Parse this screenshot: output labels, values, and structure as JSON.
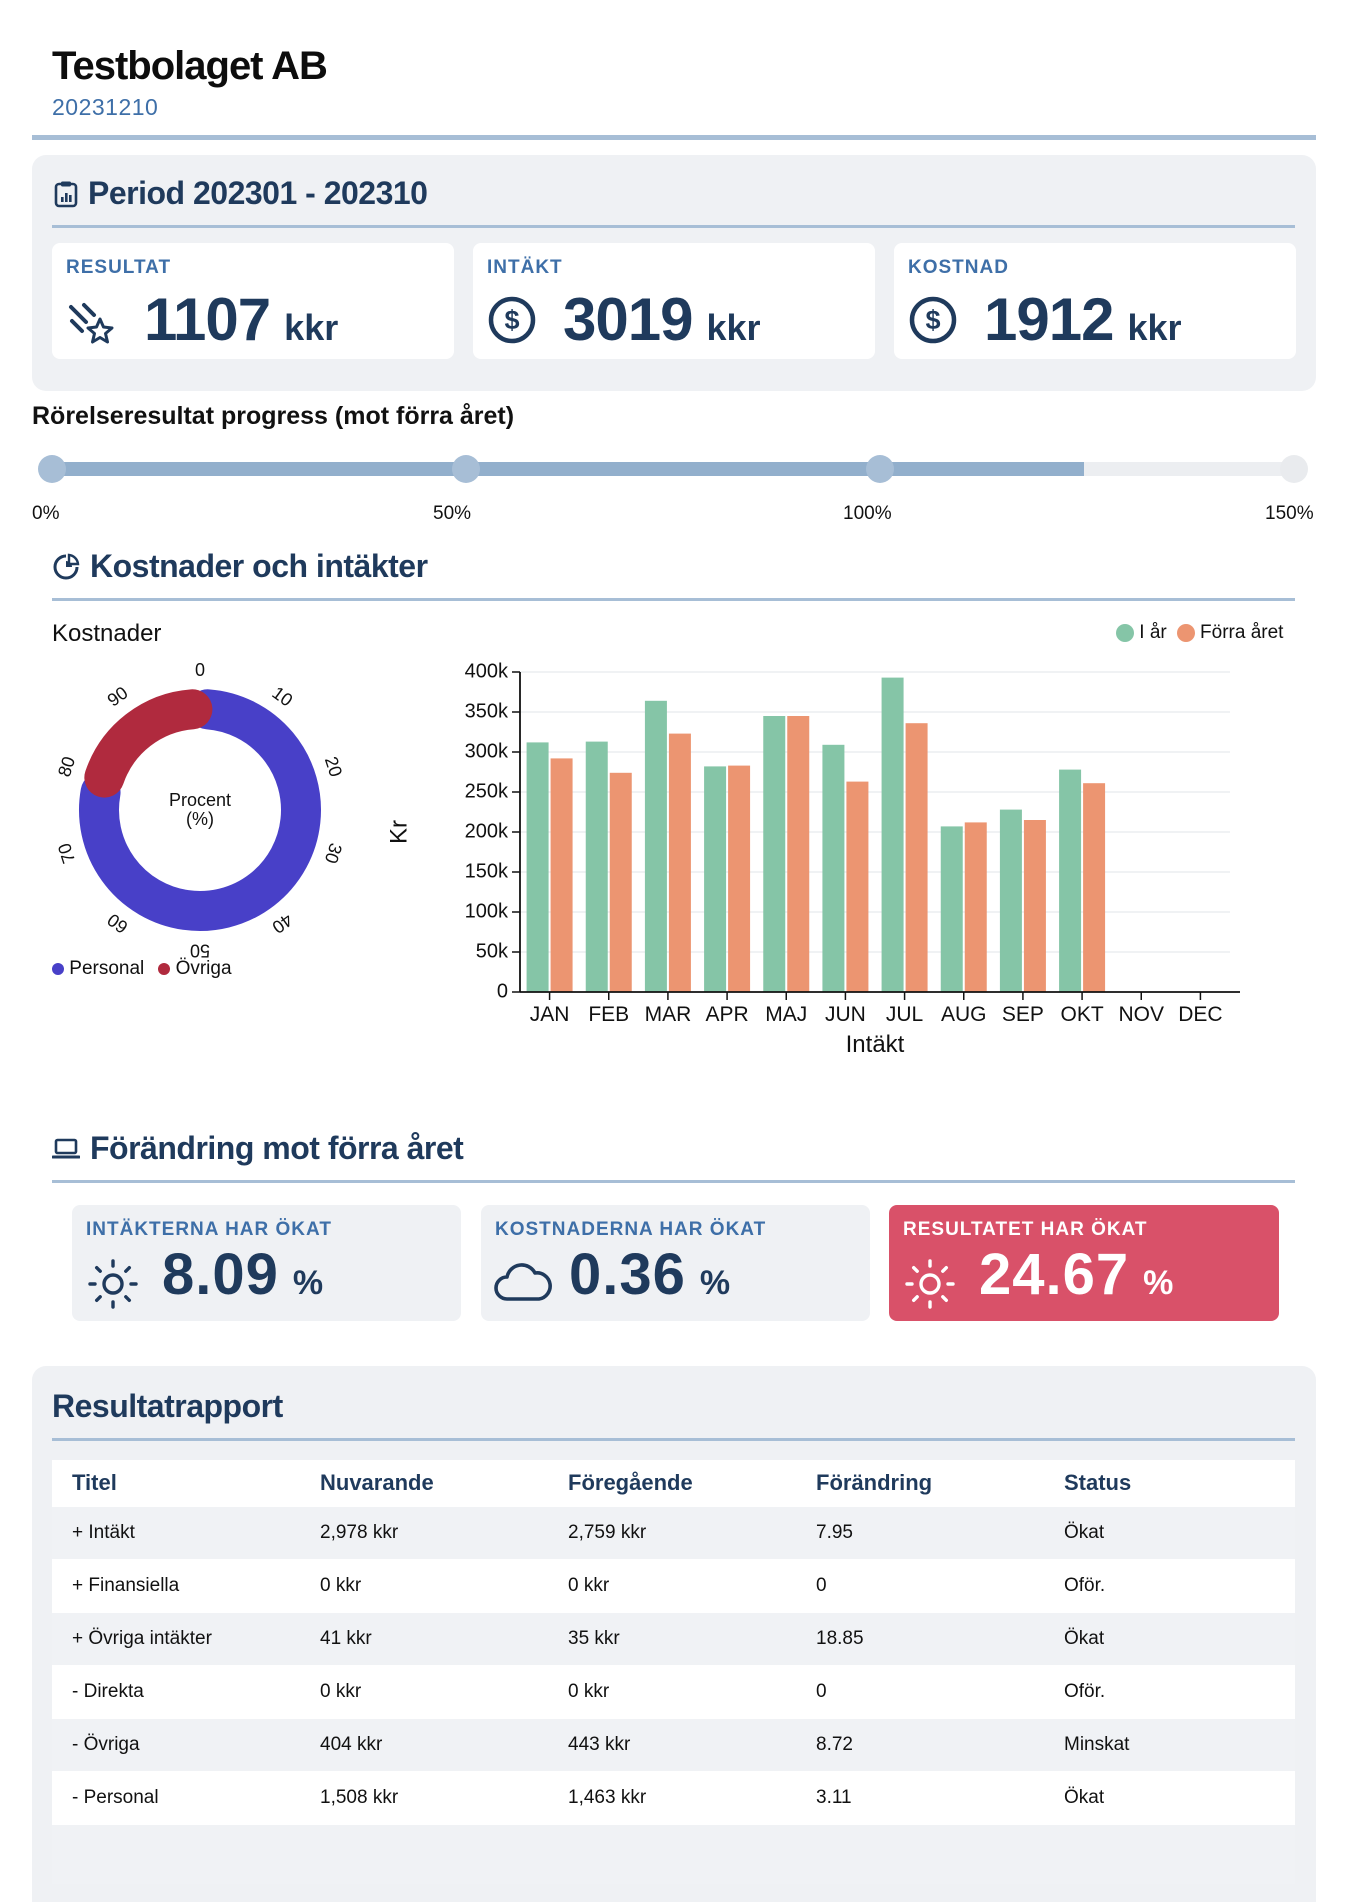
{
  "header": {
    "company": "Testbolaget AB",
    "date": "20231210"
  },
  "period": {
    "title": "Period 202301 - 202310",
    "cards": [
      {
        "label": "RESULTAT",
        "value": "1107",
        "unit": "kkr",
        "icon": "falling-star-icon"
      },
      {
        "label": "INTÄKT",
        "value": "3019",
        "unit": "kkr",
        "icon": "dollar-circle-icon"
      },
      {
        "label": "KOSTNAD",
        "value": "1912",
        "unit": "kkr",
        "icon": "dollar-circle-icon"
      }
    ]
  },
  "progress": {
    "title": "Rörelseresultat progress (mot förra året)",
    "value_percent": 124.67,
    "max_percent": 150,
    "ticks": [
      "0%",
      "50%",
      "100%",
      "150%"
    ],
    "colors": {
      "fill": "#92afcc",
      "track": "#eceef1",
      "dot": "#a7bed6"
    }
  },
  "charts_section": {
    "title": "Kostnader och intäkter"
  },
  "change_section": {
    "title": "Förändring mot förra året",
    "cards": [
      {
        "label": "INTÄKTERNA HAR ÖKAT",
        "value": "8.09",
        "unit": "%",
        "icon": "sun-icon",
        "highlight": false
      },
      {
        "label": "KOSTNADERNA HAR ÖKAT",
        "value": "0.36",
        "unit": "%",
        "icon": "cloud-icon",
        "highlight": false
      },
      {
        "label": "RESULTATET HAR ÖKAT",
        "value": "24.67",
        "unit": "%",
        "icon": "sun-icon",
        "highlight": true
      }
    ]
  },
  "report": {
    "title": "Resultatrapport",
    "columns": [
      "Titel",
      "Nuvarande",
      "Föregående",
      "Förändring",
      "Status"
    ],
    "rows": [
      [
        "+ Intäkt",
        "2,978 kkr",
        "2,759 kkr",
        "7.95",
        "Ökat"
      ],
      [
        "+ Finansiella",
        "0 kkr",
        "0 kkr",
        "0",
        "Oför."
      ],
      [
        "+ Övriga intäkter",
        "41 kkr",
        "35 kkr",
        "18.85",
        "Ökat"
      ],
      [
        "- Direkta",
        "0 kkr",
        "0 kkr",
        "0",
        "Oför."
      ],
      [
        "- Övriga",
        "404 kkr",
        "443 kkr",
        "8.72",
        "Minskat"
      ],
      [
        "- Personal",
        "1,508 kkr",
        "1,463 kkr",
        "3.11",
        "Ökat"
      ]
    ]
  },
  "chart_data": [
    {
      "type": "pie",
      "subtype": "donut",
      "title": "Kostnader",
      "center_label": "Procent\n(%)",
      "angular_ticks": [
        "0",
        "10",
        "20",
        "30",
        "40",
        "50",
        "60",
        "70",
        "80",
        "90"
      ],
      "slices": [
        {
          "name": "Personal",
          "value": 79,
          "color": "#4840c8"
        },
        {
          "name": "Övriga",
          "value": 21,
          "color": "#b02a3e"
        }
      ],
      "legend": "bottom-left"
    },
    {
      "type": "bar",
      "title": "",
      "xlabel": "Intäkt",
      "ylabel": "Kr",
      "ylim": [
        0,
        400000
      ],
      "yticks": [
        0,
        50000,
        100000,
        150000,
        200000,
        250000,
        300000,
        350000,
        400000
      ],
      "ytick_labels": [
        "0",
        "50k",
        "100k",
        "150k",
        "200k",
        "250k",
        "300k",
        "350k",
        "400k"
      ],
      "categories": [
        "JAN",
        "FEB",
        "MAR",
        "APR",
        "MAJ",
        "JUN",
        "JUL",
        "AUG",
        "SEP",
        "OKT",
        "NOV",
        "DEC"
      ],
      "series": [
        {
          "name": "I år",
          "color": "#85c5a7",
          "values": [
            312000,
            313000,
            364000,
            282000,
            345000,
            309000,
            393000,
            207000,
            228000,
            278000,
            null,
            null
          ]
        },
        {
          "name": "Förra året",
          "color": "#ec9571",
          "values": [
            292000,
            274000,
            323000,
            283000,
            345000,
            263000,
            336000,
            212000,
            215000,
            261000,
            null,
            null
          ]
        }
      ],
      "grid": true,
      "legend": "top-right"
    }
  ]
}
